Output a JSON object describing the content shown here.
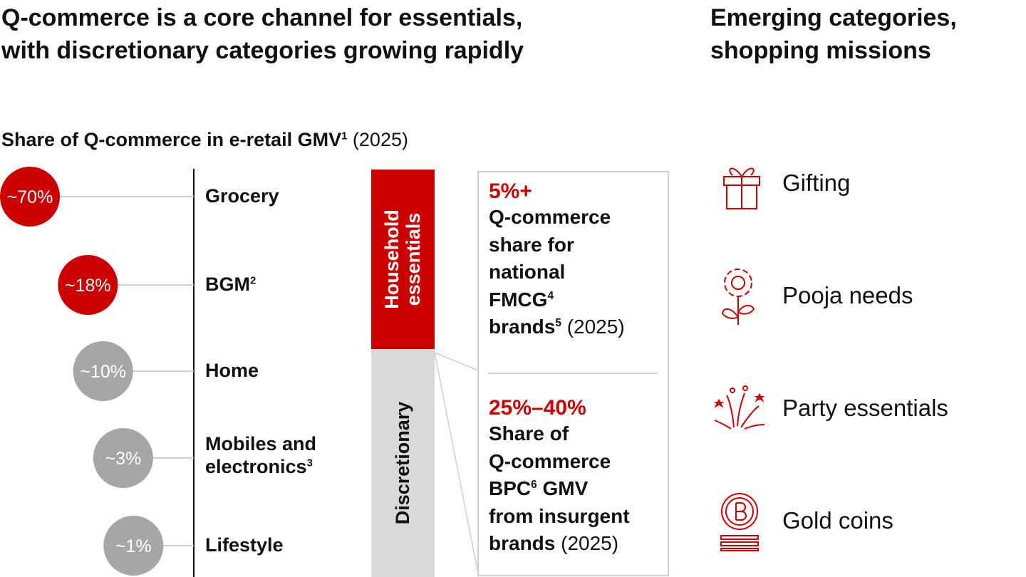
{
  "title_left": [
    "Q-commerce is a core channel for essentials,",
    "with discretionary categories growing rapidly"
  ],
  "title_right": [
    "Emerging categories,",
    "shopping missions"
  ],
  "chart_data": {
    "type": "bubble",
    "title": "Share of Q-commerce in e-retail GMV",
    "title_sup": "1",
    "subtitle": "(2025)",
    "categories": [
      "Grocery",
      "BGM",
      "Home",
      "Mobiles and electronics",
      "Lifestyle"
    ],
    "category_notes": [
      null,
      "2",
      null,
      "3",
      null
    ],
    "values": [
      70,
      18,
      10,
      3,
      1
    ],
    "value_labels": [
      "~70%",
      "~18%",
      "~10%",
      "~3%",
      "~1%"
    ],
    "colors": [
      "#cc0000",
      "#cc0000",
      "#a6a6a6",
      "#a6a6a6",
      "#a6a6a6"
    ],
    "groups": [
      {
        "name": "Household essentials",
        "color": "#cc0000"
      },
      {
        "name": "Discretionary",
        "color": "#d9d9d9"
      }
    ]
  },
  "callouts": [
    {
      "value_label": "5%+",
      "lines": [
        "Q-commerce",
        "share for",
        "national",
        {
          "text": "FMCG",
          "sup": "4"
        },
        {
          "text": "brands",
          "sup": "5",
          "rest": " (2025)"
        }
      ]
    },
    {
      "value_label": "25%–40%",
      "lines": [
        "Share of",
        "Q-commerce",
        {
          "text": "BPC",
          "sup": "6",
          "rest2": " GMV"
        },
        "from insurgent",
        {
          "text": "brands",
          "rest": " (2025)"
        }
      ]
    }
  ],
  "missions": [
    "Gifting",
    "Pooja needs",
    "Party essentials",
    "Gold coins"
  ]
}
